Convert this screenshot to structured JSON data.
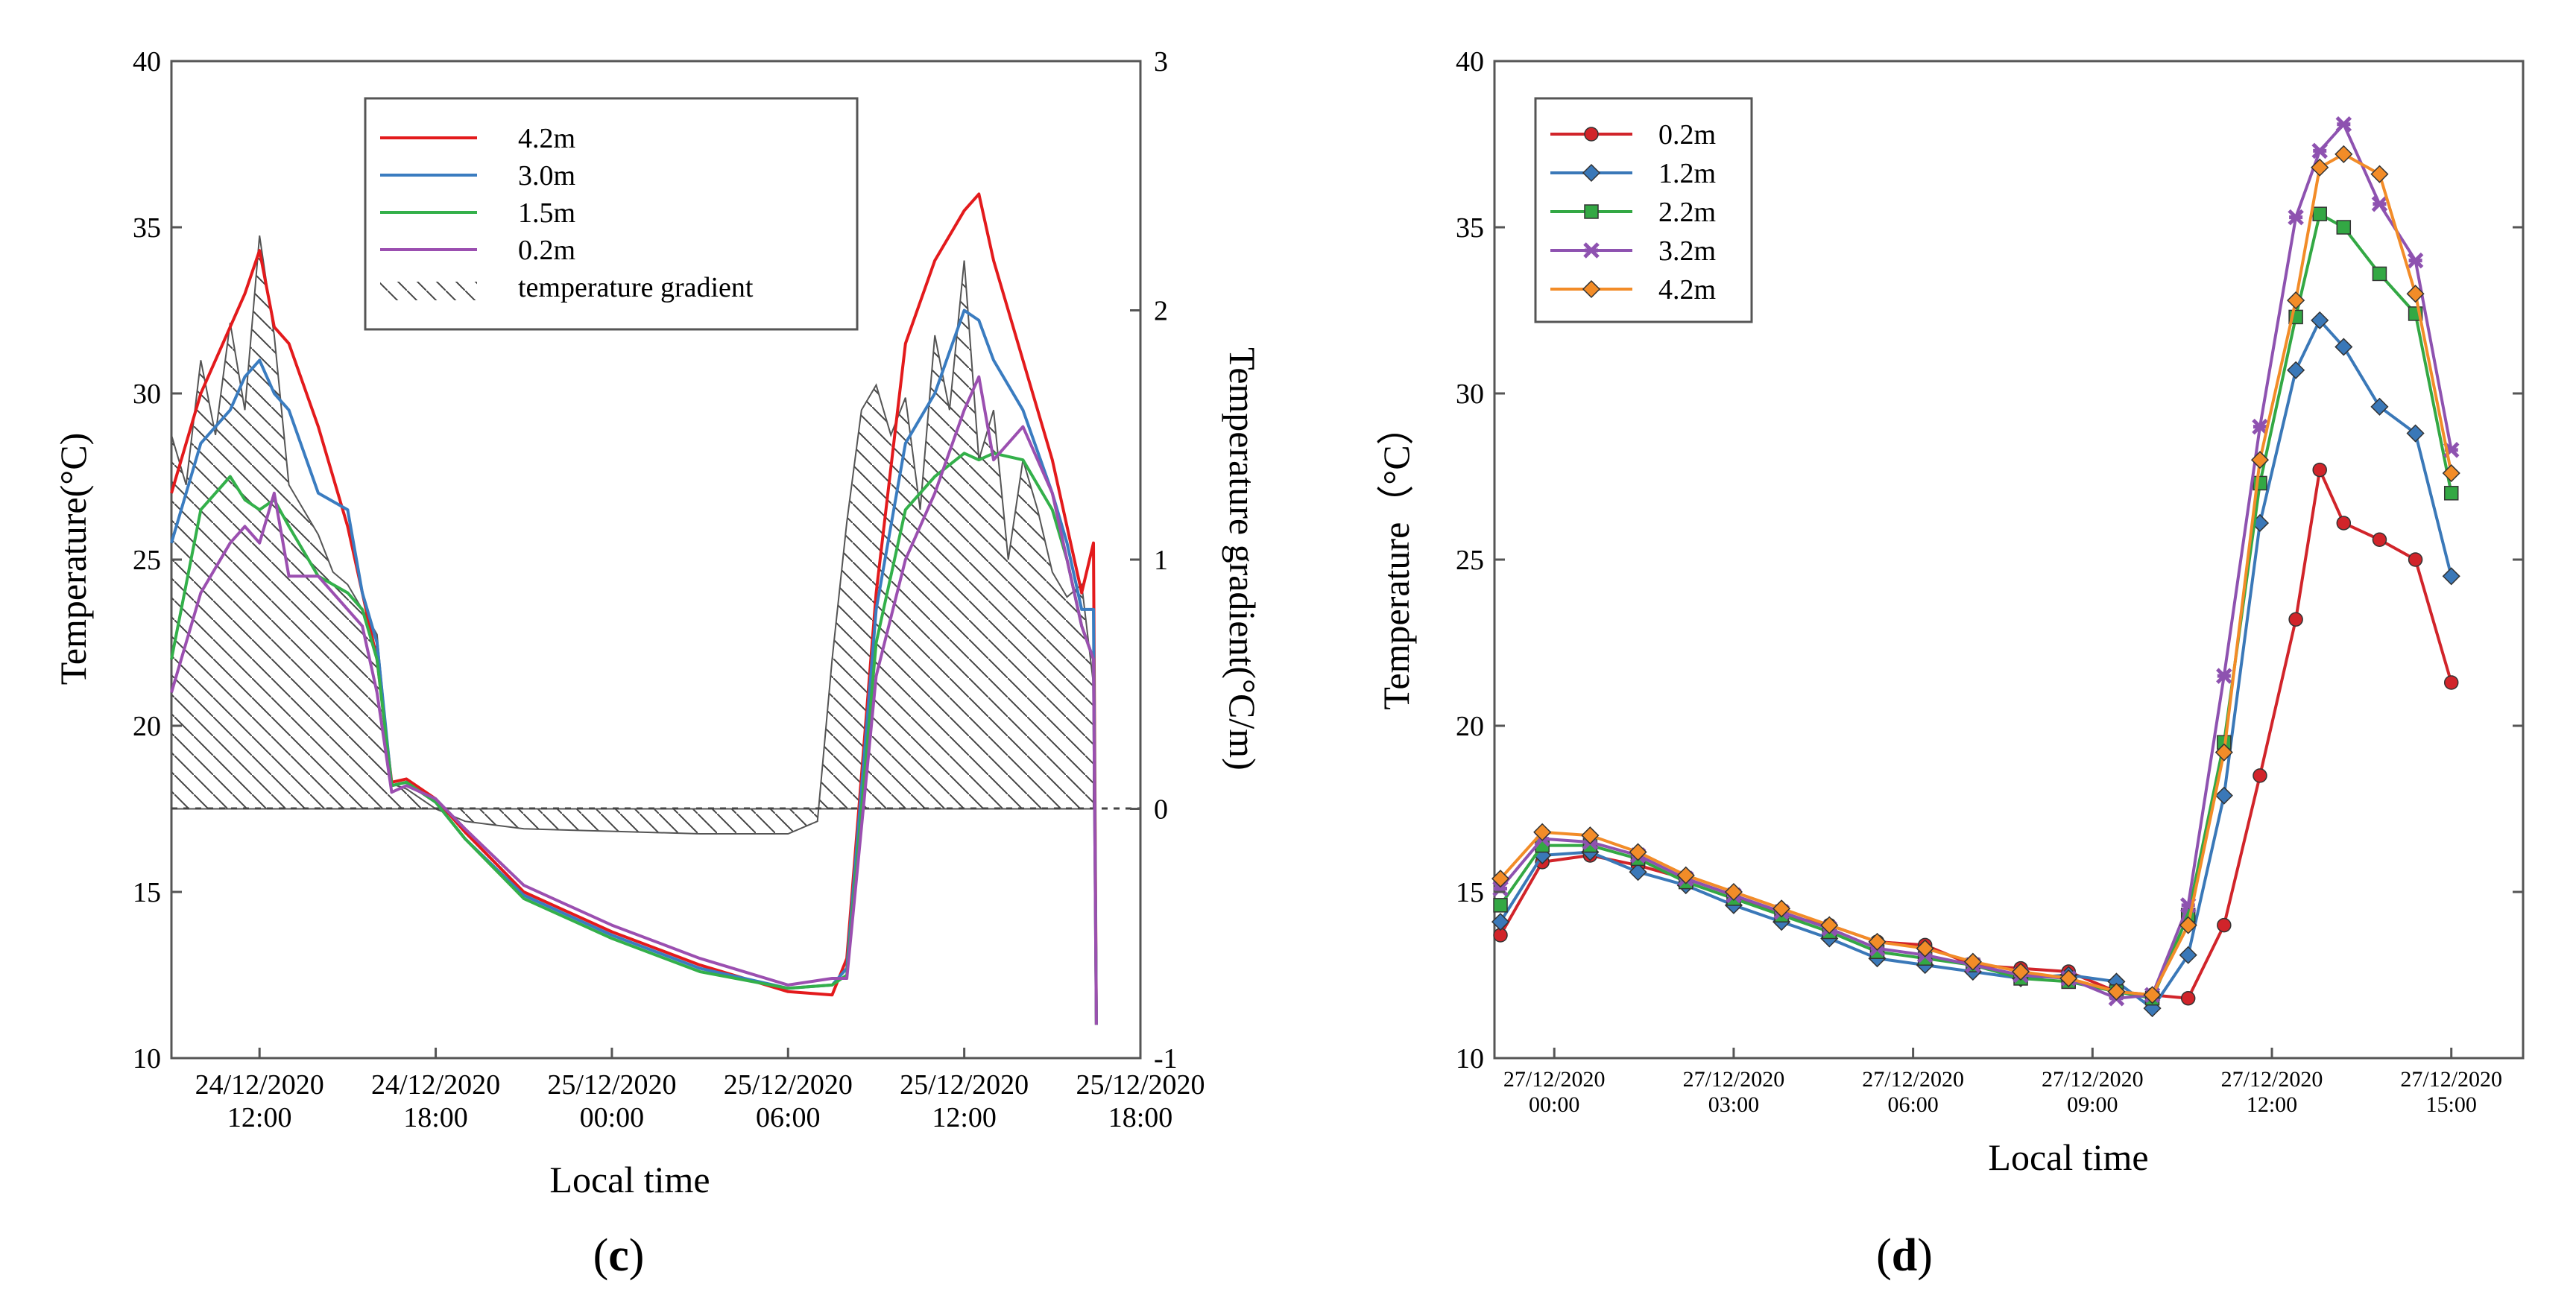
{
  "chart_data": [
    {
      "type": "line",
      "panel": "c",
      "caption_open": "(",
      "caption_letter": "c",
      "caption_close": ")",
      "xlabel": "Local time",
      "ylabel": "Temperature(°C)",
      "y2label": "Temperature gradient(°C/m)",
      "x_unit": "hours since 24/12/2020 09:00",
      "xlim": [
        0,
        33
      ],
      "ylim": [
        10,
        40
      ],
      "y2lim": [
        -1,
        3
      ],
      "yticks": [
        "10",
        "15",
        "20",
        "25",
        "30",
        "35",
        "40"
      ],
      "y2ticks": [
        "-1",
        "0",
        "1",
        "2",
        "3"
      ],
      "xticks": [
        {
          "h": 3,
          "date": "24/12/2020",
          "time": "12:00"
        },
        {
          "h": 9,
          "date": "24/12/2020",
          "time": "18:00"
        },
        {
          "h": 15,
          "date": "25/12/2020",
          "time": "00:00"
        },
        {
          "h": 21,
          "date": "25/12/2020",
          "time": "06:00"
        },
        {
          "h": 27,
          "date": "25/12/2020",
          "time": "12:00"
        },
        {
          "h": 33,
          "date": "25/12/2020",
          "time": "18:00"
        }
      ],
      "series": [
        {
          "name": "4.2m",
          "color": "#e31a1c",
          "x": [
            0,
            1,
            2,
            2.5,
            3,
            3.5,
            4,
            5,
            6,
            6.5,
            7,
            7.5,
            8,
            9,
            10,
            12,
            15,
            18,
            21,
            22.5,
            23,
            24,
            25,
            26,
            27,
            27.5,
            28,
            29,
            30,
            30.5,
            31,
            31.4,
            31.5
          ],
          "y": [
            27,
            30,
            32,
            33,
            34.3,
            32,
            31.5,
            29,
            26,
            24,
            22,
            18.3,
            18.4,
            17.8,
            16.8,
            15,
            13.8,
            12.8,
            12,
            11.9,
            13,
            24,
            31.5,
            34,
            35.5,
            36,
            34,
            31,
            28,
            26,
            24,
            25.5,
            11
          ]
        },
        {
          "name": "3.0m",
          "color": "#3a7cc0",
          "x": [
            0,
            1,
            2,
            2.5,
            3,
            3.5,
            4,
            5,
            6,
            6.5,
            7,
            7.5,
            8,
            9,
            10,
            12,
            15,
            18,
            21,
            22.5,
            23,
            24,
            25,
            26,
            27,
            27.5,
            28,
            29,
            30,
            30.5,
            31,
            31.4,
            31.5
          ],
          "y": [
            25.5,
            28.5,
            29.5,
            30.5,
            31,
            30,
            29.5,
            27,
            26.5,
            24,
            22.5,
            18.2,
            18.3,
            17.7,
            16.6,
            14.9,
            13.7,
            12.7,
            12.1,
            12.2,
            12.7,
            23.5,
            28.5,
            30,
            32.5,
            32.2,
            31,
            29.5,
            27,
            25.5,
            23.5,
            23.5,
            11
          ]
        },
        {
          "name": "1.5m",
          "color": "#33b04a",
          "x": [
            0,
            1,
            2,
            2.5,
            3,
            3.5,
            4,
            5,
            6,
            6.5,
            7,
            7.5,
            8,
            9,
            10,
            12,
            15,
            18,
            21,
            22.5,
            23,
            24,
            25,
            26,
            27,
            27.5,
            28,
            29,
            30,
            30.5,
            31,
            31.4,
            31.5
          ],
          "y": [
            22,
            26.5,
            27.5,
            26.8,
            26.5,
            26.8,
            26,
            24.5,
            24,
            23.5,
            22,
            18.2,
            18.3,
            17.7,
            16.6,
            14.8,
            13.6,
            12.6,
            12.1,
            12.2,
            12.5,
            22.5,
            26.5,
            27.5,
            28.2,
            28,
            28.2,
            28,
            26.5,
            25,
            23,
            22,
            11
          ]
        },
        {
          "name": "0.2m",
          "color": "#9b4fb0",
          "x": [
            0,
            1,
            2,
            2.5,
            3,
            3.5,
            4,
            5,
            6,
            6.5,
            7,
            7.5,
            8,
            9,
            10,
            12,
            15,
            18,
            21,
            22.5,
            23,
            24,
            25,
            26,
            27,
            27.5,
            28,
            29,
            30,
            30.5,
            31,
            31.4,
            31.5
          ],
          "y": [
            21,
            24,
            25.5,
            26,
            25.5,
            27,
            24.5,
            24.5,
            23.5,
            23,
            21,
            18,
            18.2,
            17.8,
            16.9,
            15.2,
            14,
            13,
            12.2,
            12.4,
            12.4,
            21.5,
            25,
            27,
            29.5,
            30.5,
            28,
            29,
            27,
            25,
            23,
            22,
            11
          ]
        }
      ],
      "gradient_series": {
        "name": "temperature gradient",
        "x": [
          0,
          0.5,
          1,
          1.5,
          2,
          2.5,
          3,
          3.5,
          4,
          4.5,
          5,
          5.5,
          6,
          6.5,
          7,
          7.5,
          8,
          9,
          10,
          12,
          15,
          18,
          21,
          22,
          22.5,
          23,
          23.5,
          24,
          24.5,
          25,
          25.5,
          26,
          26.5,
          27,
          27.5,
          28,
          28.5,
          29,
          29.5,
          30,
          30.5,
          31,
          31.4
        ],
        "y": [
          1.5,
          1.3,
          1.8,
          1.5,
          1.95,
          1.6,
          2.3,
          1.9,
          1.3,
          1.2,
          1.1,
          0.95,
          0.9,
          0.8,
          0.7,
          0.1,
          0.08,
          0.0,
          -0.05,
          -0.08,
          -0.09,
          -0.1,
          -0.1,
          -0.05,
          0.6,
          1.15,
          1.6,
          1.7,
          1.5,
          1.65,
          1.2,
          1.9,
          1.6,
          2.2,
          1.4,
          1.6,
          1.0,
          1.4,
          1.2,
          0.95,
          0.85,
          0.9,
          0.5
        ]
      }
    },
    {
      "type": "line",
      "panel": "d",
      "caption_open": "(",
      "caption_letter": "d",
      "caption_close": ")",
      "xlabel": "Local time",
      "ylabel": "Temperature（°C）",
      "x_unit": "hours since 26/12/2020 23:00",
      "xlim": [
        0,
        17.2
      ],
      "ylim": [
        10,
        40
      ],
      "yticks": [
        "10",
        "15",
        "20",
        "25",
        "30",
        "35",
        "40"
      ],
      "xticks": [
        {
          "h": 1,
          "date": "27/12/2020",
          "time": "00:00"
        },
        {
          "h": 4,
          "date": "27/12/2020",
          "time": "03:00"
        },
        {
          "h": 7,
          "date": "27/12/2020",
          "time": "06:00"
        },
        {
          "h": 10,
          "date": "27/12/2020",
          "time": "09:00"
        },
        {
          "h": 13,
          "date": "27/12/2020",
          "time": "12:00"
        },
        {
          "h": 16,
          "date": "27/12/2020",
          "time": "15:00"
        }
      ],
      "series": [
        {
          "name": "0.2m",
          "color": "#d1242a",
          "marker": "circle",
          "x": [
            0.1,
            0.8,
            1.6,
            2.4,
            3.2,
            4.0,
            4.8,
            5.6,
            6.4,
            7.2,
            8.0,
            8.8,
            9.6,
            10.4,
            11.0,
            11.6,
            12.2,
            12.8,
            13.4,
            13.8,
            14.2,
            14.8,
            15.4,
            16.0
          ],
          "y": [
            13.7,
            15.9,
            16.1,
            15.8,
            15.4,
            14.9,
            14.3,
            14.0,
            13.5,
            13.4,
            12.8,
            12.7,
            12.6,
            12.0,
            11.9,
            11.8,
            14.0,
            18.5,
            23.2,
            27.7,
            26.1,
            25.6,
            25.0,
            21.3
          ]
        },
        {
          "name": "1.2m",
          "color": "#3a78b8",
          "marker": "diamond",
          "x": [
            0.1,
            0.8,
            1.6,
            2.4,
            3.2,
            4.0,
            4.8,
            5.6,
            6.4,
            7.2,
            8.0,
            8.8,
            9.6,
            10.4,
            11.0,
            11.6,
            12.2,
            12.8,
            13.4,
            13.8,
            14.2,
            14.8,
            15.4,
            16.0
          ],
          "y": [
            14.1,
            16.1,
            16.2,
            15.6,
            15.2,
            14.6,
            14.1,
            13.6,
            13.0,
            12.8,
            12.6,
            12.4,
            12.5,
            12.3,
            11.5,
            13.1,
            17.9,
            26.1,
            30.7,
            32.2,
            31.4,
            29.6,
            28.8,
            24.5
          ]
        },
        {
          "name": "2.2m",
          "color": "#33a844",
          "marker": "square",
          "x": [
            0.1,
            0.8,
            1.6,
            2.4,
            3.2,
            4.0,
            4.8,
            5.6,
            6.4,
            7.2,
            8.0,
            8.8,
            9.6,
            10.4,
            11.0,
            11.6,
            12.2,
            12.8,
            13.4,
            13.8,
            14.2,
            14.8,
            15.4,
            16.0
          ],
          "y": [
            14.6,
            16.4,
            16.4,
            16.0,
            15.3,
            14.8,
            14.3,
            13.8,
            13.2,
            13.0,
            12.8,
            12.4,
            12.3,
            12.0,
            11.8,
            14.3,
            19.5,
            27.3,
            32.3,
            35.4,
            35.0,
            33.6,
            32.4,
            27.0
          ]
        },
        {
          "name": "3.2m",
          "color": "#8e52b0",
          "marker": "x",
          "x": [
            0.1,
            0.8,
            1.6,
            2.4,
            3.2,
            4.0,
            4.8,
            5.6,
            6.4,
            7.2,
            8.0,
            8.8,
            9.6,
            10.4,
            11.0,
            11.6,
            12.2,
            12.8,
            13.4,
            13.8,
            14.2,
            14.8,
            15.4,
            16.0
          ],
          "y": [
            15.1,
            16.6,
            16.5,
            16.1,
            15.4,
            14.9,
            14.4,
            13.9,
            13.3,
            13.1,
            12.8,
            12.5,
            12.4,
            11.8,
            11.9,
            14.6,
            21.5,
            29.0,
            35.3,
            37.3,
            38.1,
            35.7,
            34.0,
            28.3
          ]
        },
        {
          "name": "4.2m",
          "color": "#f28c28",
          "marker": "diamond",
          "x": [
            0.1,
            0.8,
            1.6,
            2.4,
            3.2,
            4.0,
            4.8,
            5.6,
            6.4,
            7.2,
            8.0,
            8.8,
            9.6,
            10.4,
            11.0,
            11.6,
            12.2,
            12.8,
            13.4,
            13.8,
            14.2,
            14.8,
            15.4,
            16.0
          ],
          "y": [
            15.4,
            16.8,
            16.7,
            16.2,
            15.5,
            15.0,
            14.5,
            14.0,
            13.5,
            13.3,
            12.9,
            12.6,
            12.4,
            12.0,
            11.9,
            14.0,
            19.2,
            28.0,
            32.8,
            36.8,
            37.2,
            36.6,
            33.0,
            27.6
          ]
        }
      ]
    }
  ]
}
